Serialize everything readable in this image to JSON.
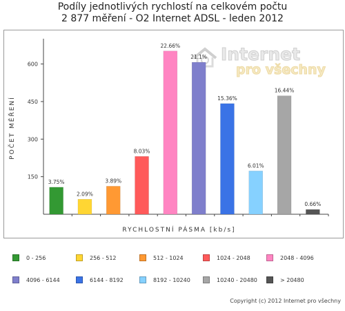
{
  "title": {
    "line1": "Podíly jednotlivých rychlostí na celkovém počtu",
    "line2": "2 877 měření - O2 Internet ADSL  - leden 2012"
  },
  "watermark": {
    "main": "Internet",
    "sub": "pro všechny"
  },
  "copyright": "Copyright (c) 2012 Internet pro všechny",
  "chart_data": {
    "type": "bar",
    "title": "Podíly jednotlivých rychlostí na celkovém počtu 2 877 měření - O2 Internet ADSL  - leden 2012",
    "xlabel": "RYCHLOSTNÍ PÁSMA [kb/s]",
    "ylabel": "POČET MĚŘENÍ",
    "ylim": [
      0,
      690
    ],
    "yticks": [
      "150",
      "300",
      "450",
      "600"
    ],
    "grid": false,
    "legend_position": "bottom",
    "categories": [
      "0 - 256",
      "256 - 512",
      "512 - 1024",
      "1024 - 2048",
      "2048 - 4096",
      "4096 - 6144",
      "6144 - 8192",
      "8192 - 10240",
      "10240 - 20480",
      "> 20480"
    ],
    "values": [
      108,
      60,
      112,
      231,
      652,
      607,
      442,
      173,
      473,
      19
    ],
    "labels": [
      "3.75%",
      "2.09%",
      "3.89%",
      "8.03%",
      "22.66%",
      "21.1%",
      "15.36%",
      "6.01%",
      "16.44%",
      "0.66%"
    ],
    "colors": [
      "#339933",
      "#ffd633",
      "#ff9933",
      "#ff5a5a",
      "#ff85c2",
      "#7f7fcc",
      "#3a73e6",
      "#86d1ff",
      "#a6a6a6",
      "#555555"
    ]
  }
}
